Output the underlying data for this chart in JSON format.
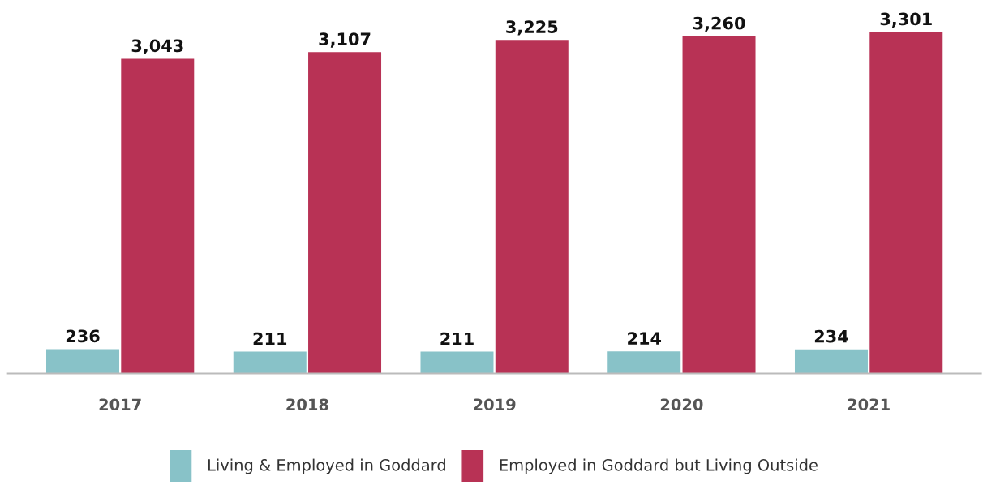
{
  "chart_data": {
    "type": "bar",
    "categories": [
      "2017",
      "2018",
      "2019",
      "2020",
      "2021"
    ],
    "series": [
      {
        "name": "Living & Employed in Goddard",
        "color": "#88c2c8",
        "values": [
          236,
          211,
          211,
          214,
          234
        ],
        "value_labels": [
          "236",
          "211",
          "211",
          "214",
          "234"
        ]
      },
      {
        "name": "Employed in Goddard but Living Outside",
        "color": "#b83255",
        "values": [
          3043,
          3107,
          3225,
          3260,
          3301
        ],
        "value_labels": [
          "3,043",
          "3,107",
          "3,225",
          "3,260",
          "3,301"
        ]
      }
    ],
    "legend": "bottom",
    "grid": false,
    "tick_labels": "x"
  }
}
